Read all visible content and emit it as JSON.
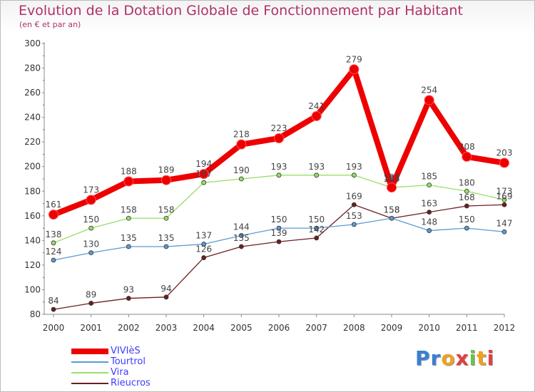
{
  "chart_data": {
    "type": "line",
    "title": "Evolution de la Dotation Globale de Fonctionnement par Habitant",
    "subtitle": "(en € et par an)",
    "xlabel": "",
    "ylabel": "",
    "ylim": [
      80,
      300
    ],
    "yticks": [
      "80",
      "100",
      "120",
      "140",
      "160",
      "180",
      "200",
      "220",
      "240",
      "260",
      "280",
      "300"
    ],
    "categories": [
      "2000",
      "2001",
      "2002",
      "2003",
      "2004",
      "2005",
      "2006",
      "2007",
      "2008",
      "2009",
      "2010",
      "2011",
      "2012"
    ],
    "grid": false,
    "legend_position": "bottom-left",
    "series": [
      {
        "name": "Rieucros",
        "color": "#6b1f1f",
        "width": 1.3,
        "marker": 3,
        "values": [
          84,
          89,
          93,
          94,
          126,
          135,
          139,
          142,
          169,
          158,
          163,
          168,
          169
        ]
      },
      {
        "name": "Vira",
        "color": "#99dd66",
        "width": 1.3,
        "marker": 3,
        "values": [
          138,
          150,
          158,
          158,
          187,
          190,
          193,
          193,
          193,
          183,
          185,
          180,
          173
        ]
      },
      {
        "name": "Tourtrol",
        "color": "#5c9ad2",
        "width": 1.3,
        "marker": 3,
        "values": [
          124,
          130,
          135,
          135,
          137,
          144,
          150,
          150,
          153,
          158,
          148,
          150,
          147
        ]
      },
      {
        "name": "VIVIèS",
        "color": "#ee0000",
        "width": 8,
        "marker": 6.5,
        "values": [
          161,
          173,
          188,
          189,
          194,
          218,
          223,
          241,
          279,
          183,
          254,
          208,
          203
        ]
      }
    ],
    "data_labels": [
      {
        "series": "VIVIèS",
        "labels": [
          "161",
          "173",
          "188",
          "189",
          "194",
          "218",
          "223",
          "241",
          "279",
          "183",
          "254",
          "208",
          "203"
        ]
      },
      {
        "series": "Vira",
        "labels": [
          "138",
          "150",
          "158",
          "158",
          "187",
          "190",
          "193",
          "193",
          "193",
          "183",
          "185",
          "180",
          "173"
        ]
      },
      {
        "series": "Tourtrol",
        "labels": [
          "124",
          "130",
          "135",
          "135",
          "137",
          "144",
          "150",
          "150",
          "153",
          "158",
          "148",
          "150",
          "147"
        ]
      },
      {
        "series": "Rieucros",
        "labels": [
          "84",
          "89",
          "93",
          "94",
          "126",
          "135",
          "139",
          "142",
          "169",
          "158",
          "163",
          "168",
          "169"
        ]
      }
    ]
  },
  "legend": {
    "items": [
      {
        "label": "VIVIèS",
        "color": "#ee0000",
        "thick": true
      },
      {
        "label": "Tourtrol",
        "color": "#5c9ad2",
        "thick": false
      },
      {
        "label": "Vira",
        "color": "#99dd66",
        "thick": false
      },
      {
        "label": "Rieucros",
        "color": "#6b1f1f",
        "thick": false
      }
    ]
  },
  "logo": {
    "text": "Proxiti"
  }
}
